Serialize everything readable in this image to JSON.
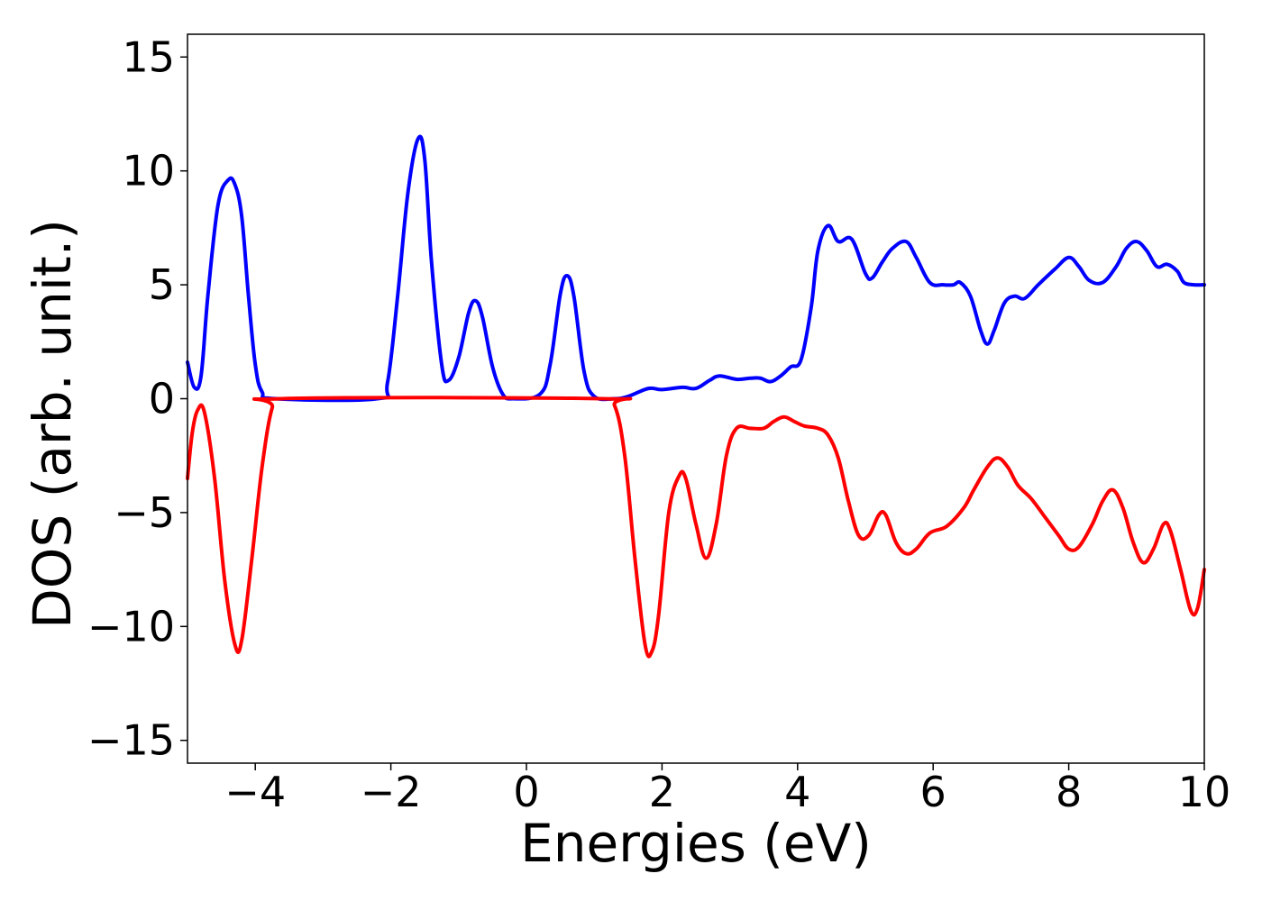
{
  "chart_data": {
    "type": "line",
    "title": "",
    "xlabel": "Energies (eV)",
    "ylabel": "DOS (arb. unit.)",
    "xlim": [
      -5,
      10
    ],
    "ylim": [
      -16,
      16
    ],
    "xticks": [
      -4,
      -2,
      0,
      2,
      4,
      6,
      8,
      10
    ],
    "yticks": [
      -15,
      -10,
      -5,
      0,
      5,
      10,
      15
    ],
    "xtick_labels": [
      "−4",
      "−2",
      "0",
      "2",
      "4",
      "6",
      "8",
      "10"
    ],
    "ytick_labels": [
      "−15",
      "−10",
      "−5",
      "0",
      "5",
      "10",
      "15"
    ],
    "grid": false,
    "legend": "none",
    "series": [
      {
        "color": "#0000ff",
        "points": [
          [
            -5.0,
            1.6
          ],
          [
            -4.9,
            0.5
          ],
          [
            -4.8,
            1.0
          ],
          [
            -4.7,
            4.5
          ],
          [
            -4.55,
            8.5
          ],
          [
            -4.4,
            9.6
          ],
          [
            -4.3,
            9.4
          ],
          [
            -4.2,
            8.0
          ],
          [
            -4.1,
            4.5
          ],
          [
            -4.0,
            1.5
          ],
          [
            -3.9,
            0.3
          ],
          [
            -3.7,
            0.0
          ],
          [
            -2.2,
            0.0
          ],
          [
            -2.05,
            0.7
          ],
          [
            -1.9,
            4.5
          ],
          [
            -1.75,
            9.0
          ],
          [
            -1.6,
            11.4
          ],
          [
            -1.5,
            10.5
          ],
          [
            -1.4,
            6.0
          ],
          [
            -1.25,
            1.5
          ],
          [
            -1.15,
            0.8
          ],
          [
            -1.0,
            1.8
          ],
          [
            -0.85,
            3.8
          ],
          [
            -0.75,
            4.3
          ],
          [
            -0.65,
            3.6
          ],
          [
            -0.5,
            1.4
          ],
          [
            -0.35,
            0.2
          ],
          [
            -0.2,
            0.0
          ],
          [
            0.2,
            0.2
          ],
          [
            0.35,
            1.5
          ],
          [
            0.5,
            4.6
          ],
          [
            0.6,
            5.4
          ],
          [
            0.7,
            4.5
          ],
          [
            0.85,
            1.2
          ],
          [
            1.0,
            0.1
          ],
          [
            1.3,
            0.0
          ],
          [
            1.5,
            0.1
          ],
          [
            1.8,
            0.45
          ],
          [
            2.0,
            0.4
          ],
          [
            2.3,
            0.5
          ],
          [
            2.5,
            0.45
          ],
          [
            2.7,
            0.8
          ],
          [
            2.85,
            1.0
          ],
          [
            3.1,
            0.85
          ],
          [
            3.3,
            0.9
          ],
          [
            3.45,
            0.9
          ],
          [
            3.6,
            0.75
          ],
          [
            3.75,
            1.0
          ],
          [
            3.9,
            1.4
          ],
          [
            4.05,
            1.7
          ],
          [
            4.2,
            4.0
          ],
          [
            4.3,
            6.5
          ],
          [
            4.45,
            7.6
          ],
          [
            4.6,
            6.9
          ],
          [
            4.8,
            7.0
          ],
          [
            5.0,
            5.5
          ],
          [
            5.1,
            5.3
          ],
          [
            5.25,
            6.0
          ],
          [
            5.4,
            6.6
          ],
          [
            5.6,
            6.9
          ],
          [
            5.75,
            6.2
          ],
          [
            5.95,
            5.1
          ],
          [
            6.15,
            5.0
          ],
          [
            6.3,
            5.0
          ],
          [
            6.4,
            5.1
          ],
          [
            6.55,
            4.5
          ],
          [
            6.7,
            3.0
          ],
          [
            6.8,
            2.4
          ],
          [
            6.9,
            3.0
          ],
          [
            7.05,
            4.2
          ],
          [
            7.2,
            4.5
          ],
          [
            7.35,
            4.4
          ],
          [
            7.55,
            5.0
          ],
          [
            7.8,
            5.7
          ],
          [
            8.0,
            6.2
          ],
          [
            8.15,
            5.8
          ],
          [
            8.3,
            5.2
          ],
          [
            8.5,
            5.1
          ],
          [
            8.7,
            5.8
          ],
          [
            8.85,
            6.6
          ],
          [
            9.0,
            6.9
          ],
          [
            9.15,
            6.5
          ],
          [
            9.3,
            5.8
          ],
          [
            9.45,
            5.9
          ],
          [
            9.6,
            5.6
          ],
          [
            9.7,
            5.1
          ],
          [
            9.85,
            5.0
          ],
          [
            10.0,
            5.0
          ]
        ]
      },
      {
        "color": "#ff0000",
        "points": [
          [
            -5.0,
            -3.5
          ],
          [
            -4.93,
            -1.5
          ],
          [
            -4.85,
            -0.5
          ],
          [
            -4.75,
            -0.6
          ],
          [
            -4.6,
            -3.5
          ],
          [
            -4.45,
            -8.0
          ],
          [
            -4.3,
            -10.8
          ],
          [
            -4.2,
            -10.6
          ],
          [
            -4.05,
            -7.0
          ],
          [
            -3.9,
            -3.0
          ],
          [
            -3.75,
            -0.4
          ],
          [
            -3.6,
            0.0
          ],
          [
            1.1,
            0.0
          ],
          [
            1.3,
            -0.3
          ],
          [
            1.45,
            -2.5
          ],
          [
            1.6,
            -7.0
          ],
          [
            1.75,
            -10.8
          ],
          [
            1.85,
            -11.1
          ],
          [
            1.95,
            -9.5
          ],
          [
            2.1,
            -5.0
          ],
          [
            2.25,
            -3.4
          ],
          [
            2.35,
            -3.5
          ],
          [
            2.5,
            -5.5
          ],
          [
            2.65,
            -7.0
          ],
          [
            2.8,
            -5.5
          ],
          [
            2.95,
            -2.5
          ],
          [
            3.1,
            -1.3
          ],
          [
            3.3,
            -1.3
          ],
          [
            3.5,
            -1.3
          ],
          [
            3.65,
            -1.0
          ],
          [
            3.8,
            -0.8
          ],
          [
            3.95,
            -1.0
          ],
          [
            4.1,
            -1.2
          ],
          [
            4.3,
            -1.3
          ],
          [
            4.45,
            -1.6
          ],
          [
            4.6,
            -2.6
          ],
          [
            4.75,
            -4.5
          ],
          [
            4.9,
            -6.0
          ],
          [
            5.05,
            -6.0
          ],
          [
            5.2,
            -5.1
          ],
          [
            5.3,
            -5.1
          ],
          [
            5.45,
            -6.3
          ],
          [
            5.6,
            -6.8
          ],
          [
            5.75,
            -6.6
          ],
          [
            5.95,
            -5.9
          ],
          [
            6.2,
            -5.6
          ],
          [
            6.45,
            -4.8
          ],
          [
            6.6,
            -4.0
          ],
          [
            6.8,
            -3.0
          ],
          [
            6.95,
            -2.6
          ],
          [
            7.1,
            -3.0
          ],
          [
            7.25,
            -3.8
          ],
          [
            7.45,
            -4.4
          ],
          [
            7.65,
            -5.2
          ],
          [
            7.85,
            -6.0
          ],
          [
            8.0,
            -6.6
          ],
          [
            8.15,
            -6.5
          ],
          [
            8.35,
            -5.5
          ],
          [
            8.5,
            -4.5
          ],
          [
            8.65,
            -4.0
          ],
          [
            8.8,
            -4.8
          ],
          [
            8.95,
            -6.3
          ],
          [
            9.1,
            -7.2
          ],
          [
            9.25,
            -6.6
          ],
          [
            9.4,
            -5.5
          ],
          [
            9.5,
            -5.8
          ],
          [
            9.65,
            -7.5
          ],
          [
            9.8,
            -9.3
          ],
          [
            9.9,
            -9.2
          ],
          [
            10.0,
            -7.5
          ]
        ]
      }
    ]
  }
}
